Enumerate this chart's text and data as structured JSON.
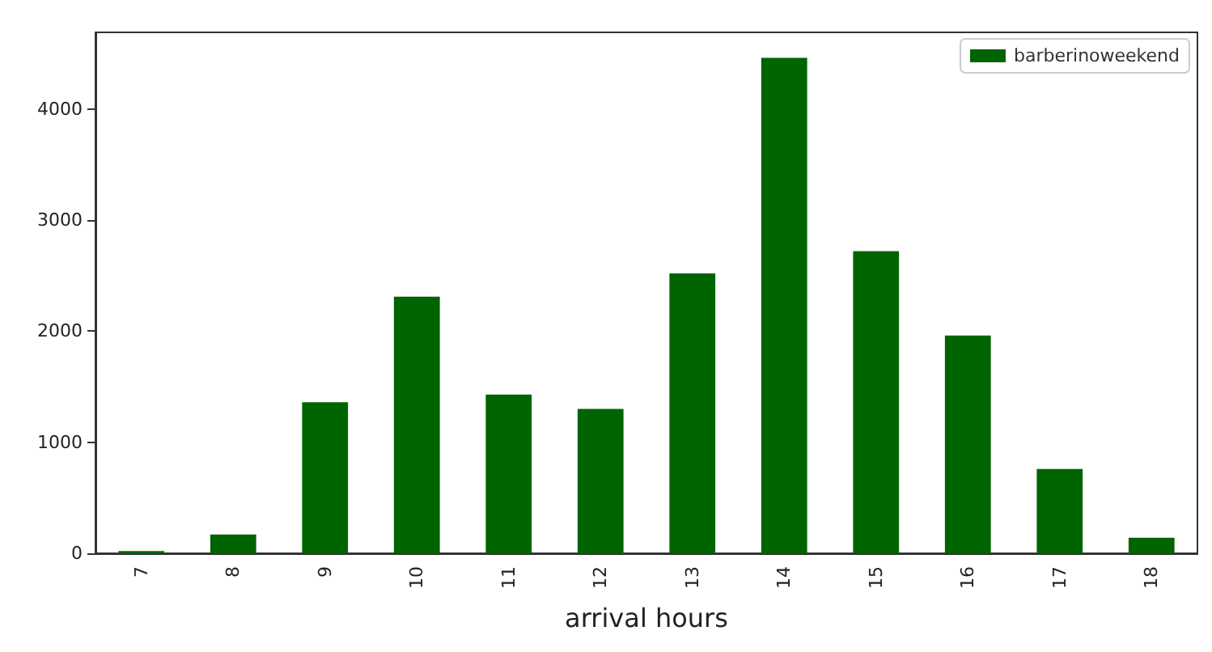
{
  "chart_data": {
    "type": "bar",
    "xlabel": "arrival hours",
    "categories": [
      "7",
      "8",
      "9",
      "10",
      "11",
      "12",
      "13",
      "14",
      "15",
      "16",
      "17",
      "18"
    ],
    "series": [
      {
        "name": "barberinoweekend",
        "color": "#006400",
        "values": [
          20,
          170,
          1360,
          2310,
          1430,
          1300,
          2520,
          4460,
          2720,
          1960,
          760,
          140
        ]
      }
    ],
    "ylim": [
      0,
      4690
    ],
    "yticks": [
      0,
      1000,
      2000,
      3000,
      4000
    ],
    "grid": false,
    "legend": "top right"
  }
}
